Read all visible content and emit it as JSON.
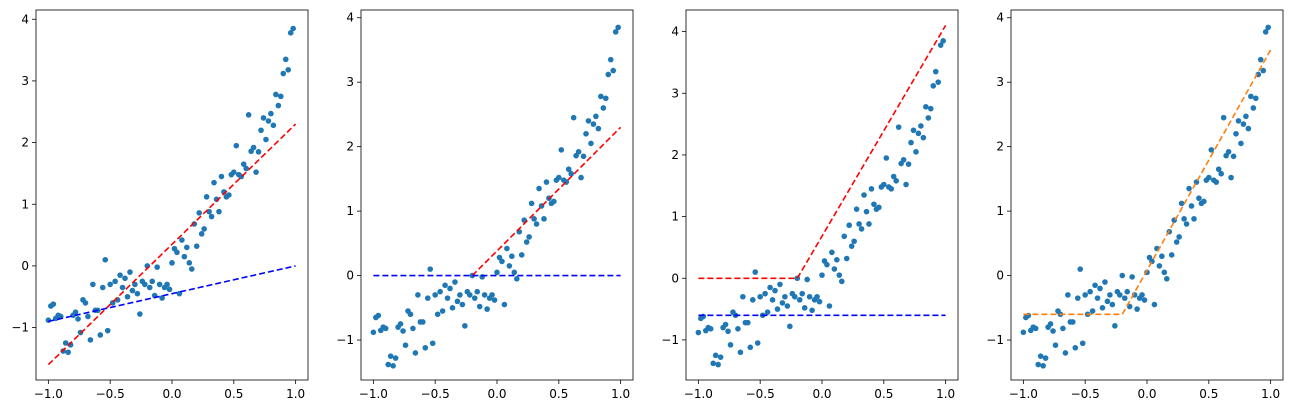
{
  "chart_data": [
    {
      "type": "scatter",
      "xlim": [
        -1.1,
        1.1
      ],
      "ylim": [
        -1.85,
        4.15
      ],
      "xticks": [
        "−1.0",
        "−0.5",
        "0.0",
        "0.5",
        "1.0"
      ],
      "yticks": [
        "−1",
        "0",
        "1",
        "2",
        "3",
        "4"
      ],
      "grid": false,
      "points": "sample",
      "lines": [
        {
          "color": "#ff0000",
          "style": "dashed",
          "x": [
            -1.0,
            1.0
          ],
          "y": [
            -1.6,
            2.3
          ]
        },
        {
          "color": "#0000ff",
          "style": "dashed",
          "x": [
            -1.0,
            1.0
          ],
          "y": [
            -0.9,
            0.0
          ]
        }
      ]
    },
    {
      "type": "scatter",
      "xlim": [
        -1.1,
        1.1
      ],
      "ylim": [
        -1.62,
        4.12
      ],
      "xticks": [
        "−1.0",
        "−0.5",
        "0.0",
        "0.5",
        "1.0"
      ],
      "yticks": [
        "−1",
        "0",
        "1",
        "2",
        "3",
        "4"
      ],
      "grid": false,
      "points": "sample",
      "lines": [
        {
          "color": "#ff0000",
          "style": "dashed",
          "x": [
            -0.2,
            1.0
          ],
          "y": [
            0.0,
            2.3
          ]
        },
        {
          "color": "#0000ff",
          "style": "dashed",
          "x": [
            -1.0,
            1.0
          ],
          "y": [
            0.0,
            0.0
          ]
        }
      ]
    },
    {
      "type": "scatter",
      "xlim": [
        -1.1,
        1.1
      ],
      "ylim": [
        -1.65,
        4.35
      ],
      "xticks": [
        "−1.0",
        "−0.5",
        "0.0",
        "0.5",
        "1.0"
      ],
      "yticks": [
        "−1",
        "0",
        "1",
        "2",
        "3",
        "4"
      ],
      "grid": false,
      "points": "sample",
      "lines": [
        {
          "color": "#ff0000",
          "style": "dashed",
          "x": [
            -1.0,
            -0.2,
            1.0
          ],
          "y": [
            0.0,
            0.0,
            4.1
          ]
        },
        {
          "color": "#0000ff",
          "style": "dashed",
          "x": [
            -1.0,
            1.0
          ],
          "y": [
            -0.6,
            -0.6
          ]
        }
      ]
    },
    {
      "type": "scatter",
      "xlim": [
        -1.1,
        1.1
      ],
      "ylim": [
        -1.62,
        4.12
      ],
      "xticks": [
        "−1.0",
        "−0.5",
        "0.0",
        "0.5",
        "1.0"
      ],
      "yticks": [
        "−1",
        "0",
        "1",
        "2",
        "3",
        "4"
      ],
      "grid": false,
      "points": "sample",
      "lines": [
        {
          "color": "#ff7f0e",
          "style": "dashed",
          "x": [
            -1.0,
            -0.2,
            1.0
          ],
          "y": [
            -0.6,
            -0.6,
            3.5
          ]
        }
      ]
    }
  ],
  "sample": {
    "color": "#1f77b4",
    "x": [
      -1.0,
      -0.98,
      -0.96,
      -0.94,
      -0.92,
      -0.9,
      -0.88,
      -0.86,
      -0.84,
      -0.82,
      -0.8,
      -0.78,
      -0.76,
      -0.74,
      -0.72,
      -0.7,
      -0.68,
      -0.66,
      -0.64,
      -0.62,
      -0.6,
      -0.58,
      -0.56,
      -0.54,
      -0.52,
      -0.5,
      -0.48,
      -0.46,
      -0.44,
      -0.42,
      -0.4,
      -0.38,
      -0.36,
      -0.34,
      -0.32,
      -0.3,
      -0.28,
      -0.26,
      -0.24,
      -0.22,
      -0.2,
      -0.18,
      -0.16,
      -0.14,
      -0.12,
      -0.1,
      -0.08,
      -0.06,
      -0.04,
      -0.02,
      0.0,
      0.02,
      0.04,
      0.06,
      0.08,
      0.1,
      0.12,
      0.14,
      0.16,
      0.18,
      0.2,
      0.22,
      0.24,
      0.26,
      0.28,
      0.3,
      0.32,
      0.34,
      0.36,
      0.38,
      0.4,
      0.42,
      0.44,
      0.46,
      0.48,
      0.5,
      0.52,
      0.54,
      0.56,
      0.58,
      0.6,
      0.62,
      0.64,
      0.66,
      0.68,
      0.7,
      0.72,
      0.74,
      0.76,
      0.78,
      0.8,
      0.82,
      0.84,
      0.86,
      0.88,
      0.9,
      0.92,
      0.94,
      0.96,
      0.98
    ],
    "y": [
      -0.88,
      -0.65,
      -0.62,
      -0.85,
      -0.8,
      -0.82,
      -1.38,
      -1.25,
      -1.4,
      -1.28,
      -0.8,
      -0.75,
      -0.86,
      -1.08,
      -0.55,
      -0.6,
      -0.82,
      -1.2,
      -0.3,
      -0.72,
      -0.72,
      -1.12,
      -0.35,
      0.1,
      -1.05,
      -0.3,
      -0.6,
      -0.25,
      -0.55,
      -0.15,
      -0.35,
      -0.2,
      -0.5,
      -0.1,
      -0.4,
      -0.3,
      -0.45,
      -0.78,
      -0.25,
      -0.3,
      0.0,
      -0.35,
      -0.25,
      -0.48,
      -0.02,
      -0.3,
      -0.52,
      -0.35,
      -0.3,
      -0.38,
      0.05,
      0.28,
      0.22,
      -0.45,
      0.42,
      0.15,
      0.3,
      0.05,
      -0.05,
      0.68,
      0.32,
      0.86,
      0.52,
      0.6,
      1.12,
      0.88,
      0.8,
      1.35,
      1.08,
      0.88,
      1.45,
      1.2,
      1.12,
      1.15,
      1.48,
      1.52,
      1.95,
      1.48,
      1.45,
      1.65,
      1.58,
      2.45,
      1.86,
      1.92,
      1.52,
      1.85,
      2.2,
      2.4,
      2.05,
      2.35,
      2.47,
      2.28,
      2.78,
      2.6,
      2.75,
      3.12,
      3.35,
      3.18,
      3.78,
      3.85
    ]
  }
}
